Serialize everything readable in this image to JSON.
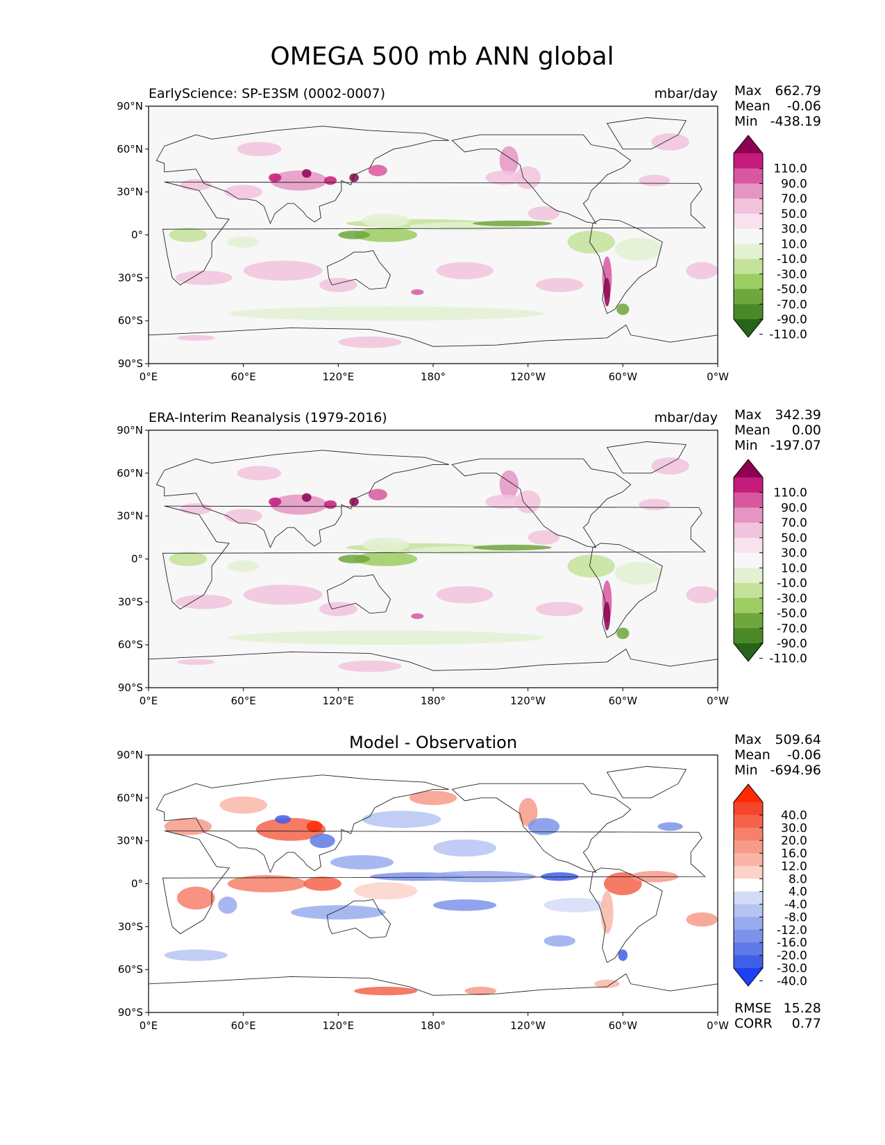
{
  "figure": {
    "title": "OMEGA 500 mb ANN global"
  },
  "chart_data": [
    {
      "type": "heatmap",
      "panel": "model",
      "title": "EarlyScience: SP-E3SM (0002-0007)",
      "units": "mbar/day",
      "stats": {
        "max_label": "Max",
        "max": "662.79",
        "mean_label": "Mean",
        "mean": "-0.06",
        "min_label": "Min",
        "min": "-438.19"
      },
      "x_ticks": [
        "0°E",
        "60°E",
        "120°E",
        "180°",
        "120°W",
        "60°W",
        "0°W"
      ],
      "y_ticks": [
        "90°N",
        "60°N",
        "30°N",
        "0°",
        "30°S",
        "60°S",
        "90°S"
      ],
      "xlim": [
        0,
        360
      ],
      "ylim": [
        -90,
        90
      ],
      "colorbar": {
        "levels": [
          "110.0",
          "90.0",
          "70.0",
          "50.0",
          "30.0",
          "10.0",
          "-10.0",
          "-30.0",
          "-50.0",
          "-70.0",
          "-90.0",
          "-110.0"
        ],
        "colors": [
          "#8e0152",
          "#c51b7d",
          "#d8589f",
          "#e595c2",
          "#f2c3dd",
          "#f8e2ee",
          "#f7f7f7",
          "#e3f1d2",
          "#c4e29a",
          "#9ccd62",
          "#6ea73d",
          "#4a8a26",
          "#276419"
        ]
      }
    },
    {
      "type": "heatmap",
      "panel": "observation",
      "title": "ERA-Interim Reanalysis (1979-2016)",
      "units": "mbar/day",
      "stats": {
        "max_label": "Max",
        "max": "342.39",
        "mean_label": "Mean",
        "mean": "0.00",
        "min_label": "Min",
        "min": "-197.07"
      },
      "x_ticks": [
        "0°E",
        "60°E",
        "120°E",
        "180°",
        "120°W",
        "60°W",
        "0°W"
      ],
      "y_ticks": [
        "90°N",
        "60°N",
        "30°N",
        "0°",
        "30°S",
        "60°S",
        "90°S"
      ],
      "xlim": [
        0,
        360
      ],
      "ylim": [
        -90,
        90
      ],
      "colorbar": {
        "levels": [
          "110.0",
          "90.0",
          "70.0",
          "50.0",
          "30.0",
          "10.0",
          "-10.0",
          "-30.0",
          "-50.0",
          "-70.0",
          "-90.0",
          "-110.0"
        ],
        "colors": [
          "#8e0152",
          "#c51b7d",
          "#d8589f",
          "#e595c2",
          "#f2c3dd",
          "#f8e2ee",
          "#f7f7f7",
          "#e3f1d2",
          "#c4e29a",
          "#9ccd62",
          "#6ea73d",
          "#4a8a26",
          "#276419"
        ]
      }
    },
    {
      "type": "heatmap",
      "panel": "difference",
      "title": "Model - Observation",
      "units": "",
      "stats": {
        "max_label": "Max",
        "max": "509.64",
        "mean_label": "Mean",
        "mean": "-0.06",
        "min_label": "Min",
        "min": "-694.96"
      },
      "metrics": {
        "rmse_label": "RMSE",
        "rmse": "15.28",
        "corr_label": "CORR",
        "corr": "0.77"
      },
      "x_ticks": [
        "0°E",
        "60°E",
        "120°E",
        "180°",
        "120°W",
        "60°W",
        "0°W"
      ],
      "y_ticks": [
        "90°N",
        "60°N",
        "30°N",
        "0°",
        "30°S",
        "60°S",
        "90°S"
      ],
      "xlim": [
        0,
        360
      ],
      "ylim": [
        -90,
        90
      ],
      "colorbar": {
        "levels": [
          "40.0",
          "30.0",
          "20.0",
          "16.0",
          "12.0",
          "8.0",
          "4.0",
          "-4.0",
          "-8.0",
          "-12.0",
          "-16.0",
          "-20.0",
          "-30.0",
          "-40.0"
        ],
        "colors": [
          "#ff2a00",
          "#f5452a",
          "#f5634a",
          "#f6806a",
          "#f79b88",
          "#f9b6a8",
          "#fbd3c9",
          "#ffffff",
          "#d3dcf7",
          "#b6c4f2",
          "#98abee",
          "#7d93ea",
          "#5f79e6",
          "#3f5fe8",
          "#1f3ff5"
        ]
      }
    }
  ]
}
